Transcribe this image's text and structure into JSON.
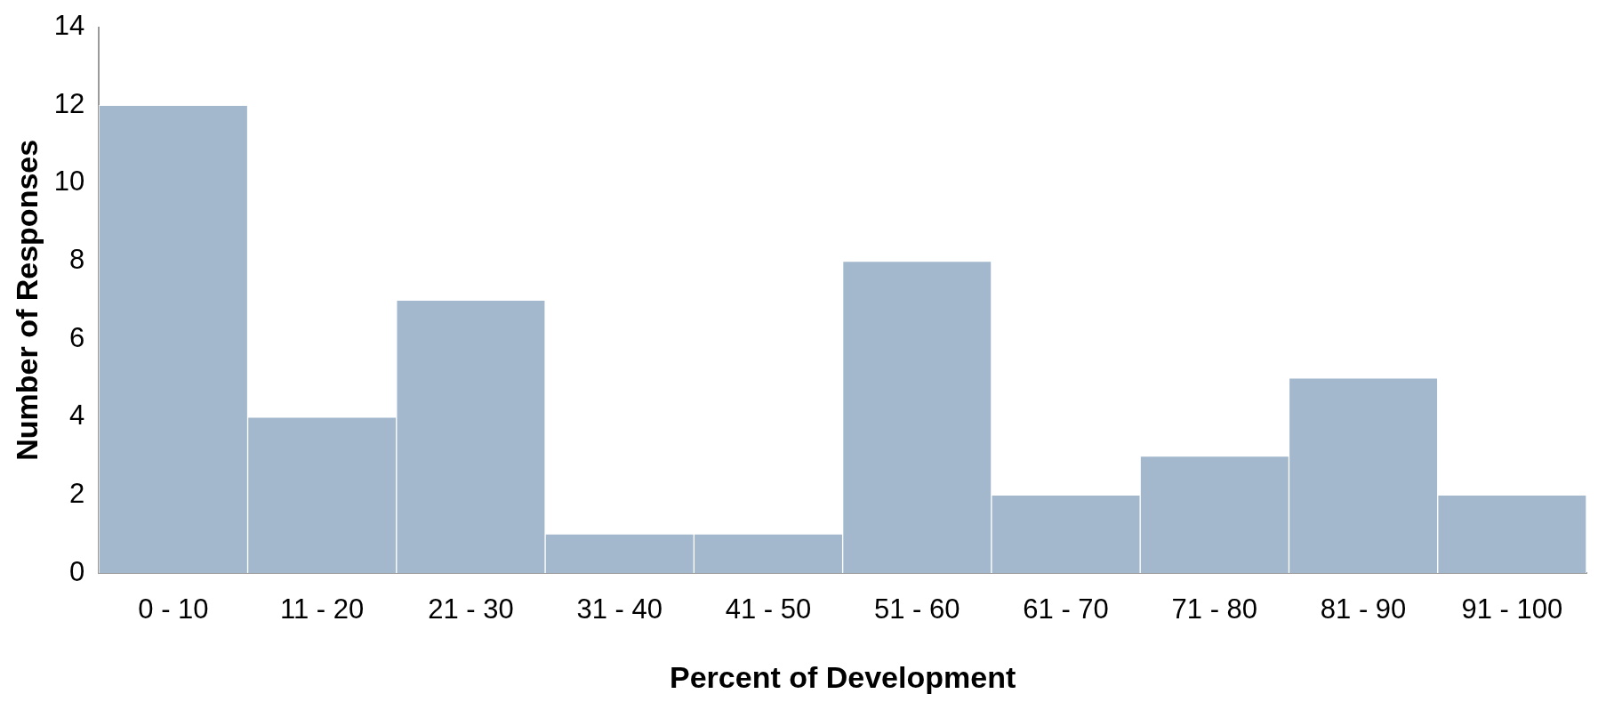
{
  "chart_data": {
    "type": "bar",
    "xlabel": "Percent of Development",
    "ylabel": "Number of Responses",
    "categories": [
      "0 - 10",
      "11 - 20",
      "21 - 30",
      "31 - 40",
      "41 - 50",
      "51 - 60",
      "61 - 70",
      "71 - 80",
      "81 - 90",
      "91 - 100"
    ],
    "values": [
      12,
      4,
      7,
      1,
      1,
      8,
      2,
      3,
      5,
      2
    ],
    "color": "#a3b8cc",
    "ylim": [
      0,
      14
    ],
    "yticks": [
      0,
      2,
      4,
      6,
      8,
      10,
      12,
      14
    ],
    "grid": false,
    "legend": false
  }
}
